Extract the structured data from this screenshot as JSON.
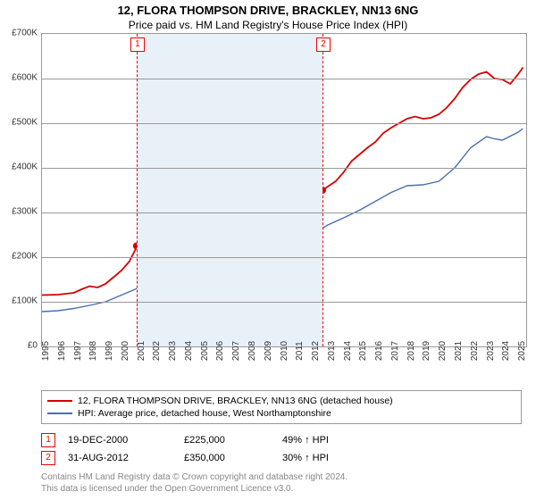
{
  "title": "12, FLORA THOMPSON DRIVE, BRACKLEY, NN13 6NG",
  "subtitle": "Price paid vs. HM Land Registry's House Price Index (HPI)",
  "chart": {
    "type": "line",
    "x_axis": {
      "min": 1995,
      "max": 2025.5,
      "ticks": [
        1995,
        1996,
        1997,
        1998,
        1999,
        2000,
        2001,
        2002,
        2003,
        2004,
        2005,
        2006,
        2007,
        2008,
        2009,
        2010,
        2011,
        2012,
        2013,
        2014,
        2015,
        2016,
        2017,
        2018,
        2019,
        2020,
        2021,
        2022,
        2023,
        2024,
        2025
      ]
    },
    "y_axis": {
      "min": 0,
      "max": 700000,
      "tick_step": 100000,
      "ticks": [
        0,
        100000,
        200000,
        300000,
        400000,
        500000,
        600000,
        700000
      ],
      "tick_labels": [
        "£0",
        "£100K",
        "£200K",
        "£300K",
        "£400K",
        "£500K",
        "£600K",
        "£700K"
      ]
    },
    "shaded_span": {
      "from": 2000.96,
      "to": 2012.67,
      "color": "#e8f0f8"
    },
    "background_color": "#ffffff",
    "grid_color": "#999999",
    "border_color": "#999999",
    "series": [
      {
        "id": "price_paid",
        "label": "12, FLORA THOMPSON DRIVE, BRACKLEY, NN13 6NG (detached house)",
        "color": "#d40000",
        "line_width": 1.8,
        "points": [
          [
            1995,
            115000
          ],
          [
            1996,
            116000
          ],
          [
            1997,
            120000
          ],
          [
            1997.5,
            128000
          ],
          [
            1998,
            135000
          ],
          [
            1998.5,
            132000
          ],
          [
            1999,
            140000
          ],
          [
            1999.5,
            155000
          ],
          [
            2000,
            170000
          ],
          [
            2000.5,
            190000
          ],
          [
            2001,
            225000
          ],
          [
            2001.5,
            230000
          ],
          [
            2002,
            245000
          ],
          [
            2002.5,
            270000
          ],
          [
            2003,
            290000
          ],
          [
            2003.5,
            298000
          ],
          [
            2004,
            315000
          ],
          [
            2004.5,
            335000
          ],
          [
            2005,
            345000
          ],
          [
            2005.5,
            348000
          ],
          [
            2006,
            355000
          ],
          [
            2006.5,
            370000
          ],
          [
            2007,
            395000
          ],
          [
            2007.5,
            412000
          ],
          [
            2008,
            410000
          ],
          [
            2008.5,
            370000
          ],
          [
            2009,
            340000
          ],
          [
            2009.5,
            358000
          ],
          [
            2010,
            378000
          ],
          [
            2010.5,
            375000
          ],
          [
            2011,
            360000
          ],
          [
            2011.5,
            355000
          ],
          [
            2012,
            362000
          ],
          [
            2012.67,
            350000
          ],
          [
            2013,
            358000
          ],
          [
            2013.5,
            370000
          ],
          [
            2014,
            390000
          ],
          [
            2014.5,
            415000
          ],
          [
            2015,
            430000
          ],
          [
            2015.5,
            445000
          ],
          [
            2016,
            458000
          ],
          [
            2016.5,
            478000
          ],
          [
            2017,
            490000
          ],
          [
            2017.5,
            500000
          ],
          [
            2018,
            510000
          ],
          [
            2018.5,
            515000
          ],
          [
            2019,
            510000
          ],
          [
            2019.5,
            512000
          ],
          [
            2020,
            520000
          ],
          [
            2020.5,
            535000
          ],
          [
            2021,
            555000
          ],
          [
            2021.5,
            580000
          ],
          [
            2022,
            598000
          ],
          [
            2022.5,
            610000
          ],
          [
            2023,
            615000
          ],
          [
            2023.5,
            600000
          ],
          [
            2024,
            598000
          ],
          [
            2024.5,
            588000
          ],
          [
            2025,
            610000
          ],
          [
            2025.3,
            625000
          ]
        ],
        "markers": [
          {
            "n": 1,
            "x": 2000.96,
            "y": 225000
          },
          {
            "n": 2,
            "x": 2012.67,
            "y": 350000
          }
        ]
      },
      {
        "id": "hpi",
        "label": "HPI: Average price, detached house, West Northamptonshire",
        "color": "#4a6fb0",
        "line_width": 1.4,
        "points": [
          [
            1995,
            78000
          ],
          [
            1996,
            80000
          ],
          [
            1997,
            85000
          ],
          [
            1998,
            92000
          ],
          [
            1999,
            100000
          ],
          [
            2000,
            115000
          ],
          [
            2001,
            130000
          ],
          [
            2002,
            155000
          ],
          [
            2003,
            180000
          ],
          [
            2004,
            210000
          ],
          [
            2005,
            225000
          ],
          [
            2006,
            240000
          ],
          [
            2007,
            265000
          ],
          [
            2007.5,
            280000
          ],
          [
            2008,
            300000
          ],
          [
            2008.5,
            270000
          ],
          [
            2009,
            245000
          ],
          [
            2009.5,
            258000
          ],
          [
            2010,
            270000
          ],
          [
            2010.5,
            268000
          ],
          [
            2011,
            260000
          ],
          [
            2011.5,
            258000
          ],
          [
            2012,
            262000
          ],
          [
            2012.67,
            265000
          ],
          [
            2013,
            272000
          ],
          [
            2014,
            288000
          ],
          [
            2015,
            305000
          ],
          [
            2016,
            325000
          ],
          [
            2017,
            345000
          ],
          [
            2018,
            360000
          ],
          [
            2019,
            362000
          ],
          [
            2020,
            370000
          ],
          [
            2021,
            400000
          ],
          [
            2022,
            445000
          ],
          [
            2023,
            470000
          ],
          [
            2023.5,
            465000
          ],
          [
            2024,
            462000
          ],
          [
            2025,
            480000
          ],
          [
            2025.3,
            488000
          ]
        ]
      }
    ]
  },
  "legend": {
    "border_color": "#999999",
    "font_size": 10.5,
    "items": [
      {
        "color": "#d40000",
        "label": "12, FLORA THOMPSON DRIVE, BRACKLEY, NN13 6NG (detached house)"
      },
      {
        "color": "#4a6fb0",
        "label": "HPI: Average price, detached house, West Northamptonshire"
      }
    ]
  },
  "transactions": [
    {
      "n": "1",
      "date": "19-DEC-2000",
      "price": "£225,000",
      "hpi": "49% ↑ HPI"
    },
    {
      "n": "2",
      "date": "31-AUG-2012",
      "price": "£350,000",
      "hpi": "30% ↑ HPI"
    }
  ],
  "footer_line1": "Contains HM Land Registry data © Crown copyright and database right 2024.",
  "footer_line2": "This data is licensed under the Open Government Licence v3.0."
}
